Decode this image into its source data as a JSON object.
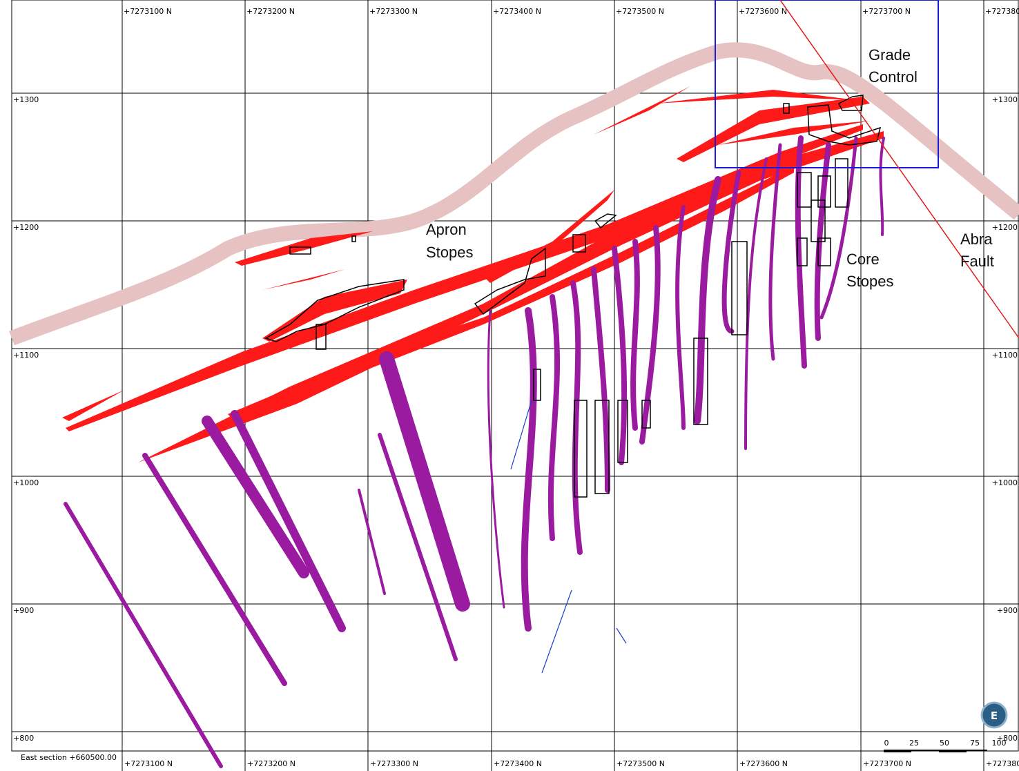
{
  "northing_labels_top": [
    "+7273100 N",
    "+7273200 N",
    "+7273300 N",
    "+7273400 N",
    "+7273500 N",
    "+7273600 N",
    "+7273700 N",
    "+727380"
  ],
  "northing_labels_bottom": [
    "+7273100 N",
    "+7273200 N",
    "+7273300 N",
    "+7273400 N",
    "+7273500 N",
    "+7273600 N",
    "+7273700 N",
    "+727380"
  ],
  "elevation_labels_left": [
    "+1300",
    "+1200",
    "+1100",
    "+1000",
    "+900",
    "+800"
  ],
  "elevation_labels_right": [
    "+1300",
    "+1200",
    "+1100",
    "+1000",
    "+900",
    "+800"
  ],
  "section_label": "East section +660500.00",
  "annotations": {
    "grade_control": [
      "Grade",
      "Control"
    ],
    "apron_stopes": [
      "Apron",
      "Stopes"
    ],
    "core_stopes": [
      "Core",
      "Stopes"
    ],
    "abra_fault": [
      "Abra",
      "Fault"
    ]
  },
  "scale_bar": [
    "0",
    "25",
    "50",
    "75",
    "100"
  ],
  "compass": "E"
}
